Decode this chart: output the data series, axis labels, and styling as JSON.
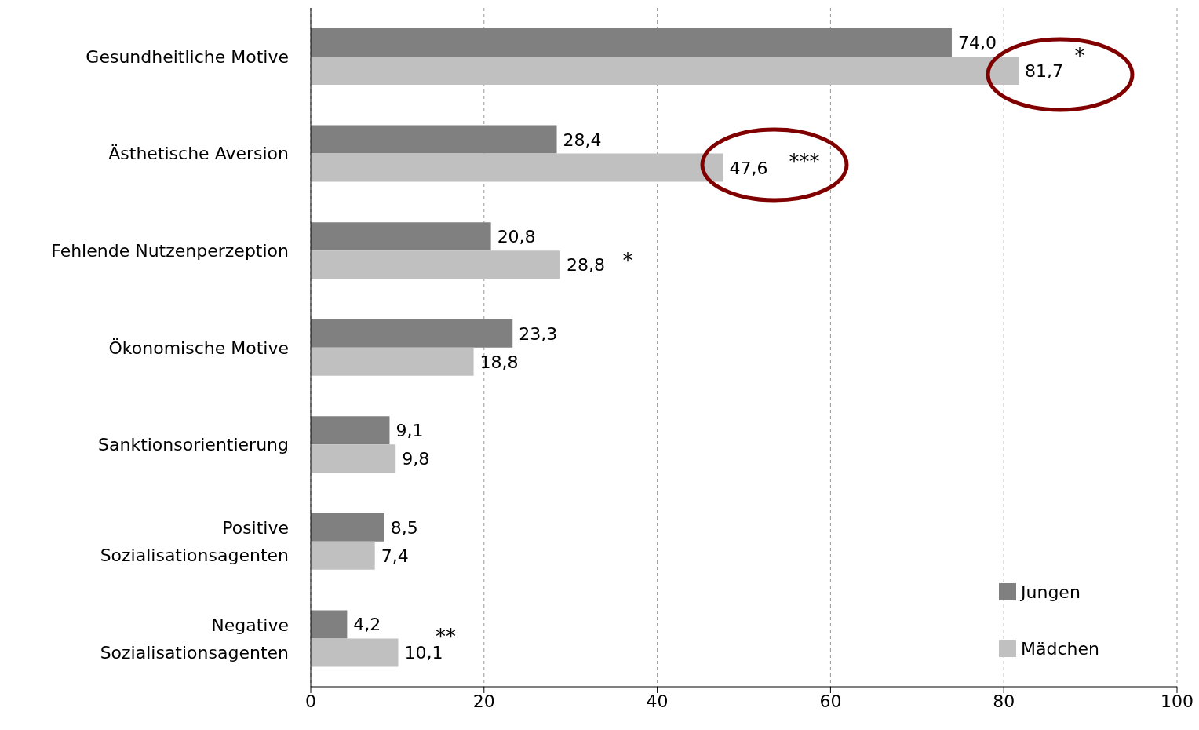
{
  "chart_data": {
    "type": "bar",
    "orientation": "horizontal",
    "categories": [
      "Gesundheitliche Motive",
      "Ästhetische Aversion",
      "Fehlende Nutzenperzeption",
      "Ökonomische Motive",
      "Sanktionsorientierung",
      "Positive Sozialisationsagenten",
      "Negative Sozialisationsagenten"
    ],
    "series": [
      {
        "name": "Jungen",
        "color": "#808080",
        "values": [
          74.0,
          28.4,
          20.8,
          23.3,
          9.1,
          8.5,
          4.2
        ],
        "value_labels": [
          "74,0",
          "28,4",
          "20,8",
          "23,3",
          "9,1",
          "8,5",
          "4,2"
        ]
      },
      {
        "name": "Mädchen",
        "color": "#c0c0c0",
        "values": [
          81.7,
          47.6,
          28.8,
          18.8,
          9.8,
          7.4,
          10.1
        ],
        "value_labels": [
          "81,7",
          "47,6",
          "28,8",
          "18,8",
          "9,8",
          "7,4",
          "10,1"
        ]
      }
    ],
    "xlim": [
      0,
      100
    ],
    "xticks": [
      0,
      20,
      40,
      60,
      80,
      100
    ],
    "grid": "x",
    "legend": "bottom right",
    "annotations": [
      "*",
      "***",
      "*",
      "**"
    ]
  }
}
